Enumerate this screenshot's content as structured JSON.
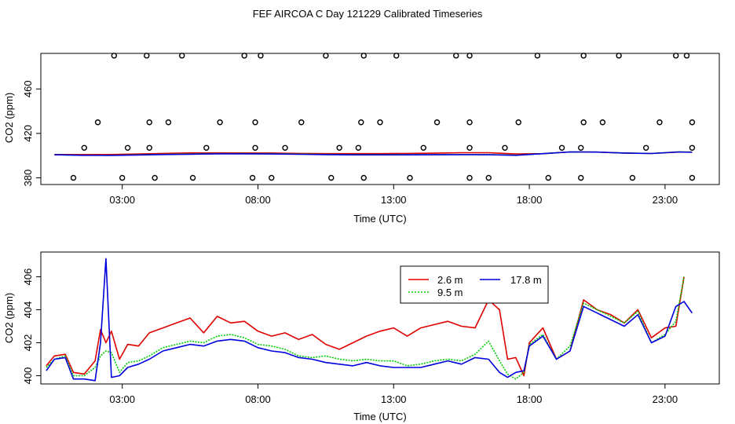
{
  "title": "FEF AIRCOA C  Day 121229  Calibrated Timeseries",
  "colors": {
    "red": "#e00000",
    "green": "#00cc00",
    "blue": "#0000dd",
    "axis": "#000000"
  },
  "chart_data": [
    {
      "type": "scatter+line",
      "xlabel": "Time (UTC)",
      "ylabel": "CO2 (ppm)",
      "xlim": [
        0.0,
        25.0
      ],
      "ylim": [
        374,
        492
      ],
      "x_ticks": [
        3,
        8,
        13,
        18,
        23
      ],
      "x_tick_labels": [
        "03:00",
        "08:00",
        "13:00",
        "18:00",
        "23:00"
      ],
      "y_ticks": [
        380,
        420,
        460
      ],
      "y_tick_labels": [
        "380",
        "420",
        "460"
      ],
      "scatter_points": {
        "x": [
          1.2,
          3.0,
          4.2,
          5.6,
          7.8,
          8.5,
          10.7,
          11.9,
          13.6,
          15.8,
          16.5,
          18.7,
          19.9,
          21.8,
          24.0,
          1.6,
          3.2,
          4.0,
          6.1,
          7.9,
          9.0,
          11.0,
          11.7,
          14.1,
          15.8,
          17.1,
          19.2,
          19.9,
          22.3,
          24.0,
          2.1,
          4.0,
          4.7,
          6.6,
          7.9,
          9.6,
          11.8,
          12.5,
          14.6,
          15.8,
          17.6,
          20.0,
          20.7,
          22.8,
          24.0,
          2.7,
          3.9,
          5.2,
          7.5,
          8.1,
          10.5,
          11.9,
          13.1,
          15.3,
          15.8,
          18.3,
          20.0,
          21.3,
          23.4,
          23.8
        ],
        "y": [
          380,
          380,
          380,
          380,
          380,
          380,
          380,
          380,
          380,
          380,
          380,
          380,
          380,
          380,
          380,
          407,
          407,
          407,
          407,
          407,
          407,
          407,
          407,
          407,
          407,
          407,
          407,
          407,
          407,
          407,
          430,
          430,
          430,
          430,
          430,
          430,
          430,
          430,
          430,
          430,
          430,
          430,
          430,
          430,
          430,
          490,
          490,
          490,
          490,
          490,
          490,
          490,
          490,
          490,
          490,
          490,
          490,
          490,
          490,
          490
        ]
      },
      "series": [
        {
          "name": "2.6 m",
          "color": "red",
          "x": [
            0.5,
            1.5,
            2.5,
            3.5,
            4.5,
            5.5,
            6.5,
            7.5,
            8.5,
            9.5,
            10.5,
            11.5,
            12.5,
            13.5,
            14.5,
            15.5,
            16.5,
            17.5,
            18.5,
            19.5,
            20.5,
            21.5,
            22.5,
            23.5,
            24.0
          ],
          "values": [
            401.0,
            401.0,
            401.0,
            401.4,
            402.0,
            402.4,
            402.5,
            402.4,
            402.3,
            402.0,
            401.8,
            401.8,
            401.8,
            402.0,
            402.2,
            402.6,
            402.6,
            401.5,
            401.8,
            403.3,
            403.2,
            402.3,
            401.9,
            403.2,
            403.2
          ]
        },
        {
          "name": "9.5 m",
          "color": "green",
          "x": [
            0.5,
            1.5,
            2.5,
            3.5,
            4.5,
            5.5,
            6.5,
            7.5,
            8.5,
            9.5,
            10.5,
            11.5,
            12.5,
            13.5,
            14.5,
            15.5,
            16.5,
            17.5,
            18.5,
            19.5,
            20.5,
            21.5,
            22.5,
            23.5,
            24.0
          ],
          "values": [
            400.8,
            400.4,
            400.3,
            400.8,
            401.2,
            401.6,
            401.9,
            401.9,
            401.8,
            401.5,
            401.1,
            401.0,
            401.0,
            401.0,
            401.0,
            401.0,
            401.0,
            400.5,
            401.8,
            403.3,
            403.2,
            402.3,
            401.9,
            403.5,
            403.2
          ]
        },
        {
          "name": "17.8 m",
          "color": "blue",
          "x": [
            0.5,
            1.5,
            2.5,
            3.5,
            4.5,
            5.5,
            6.5,
            7.5,
            8.5,
            9.5,
            10.5,
            11.5,
            12.5,
            13.5,
            14.5,
            15.5,
            16.5,
            17.5,
            18.5,
            19.5,
            20.5,
            21.5,
            22.5,
            23.5,
            24.0
          ],
          "values": [
            400.8,
            400.3,
            400.2,
            400.6,
            401.0,
            401.3,
            401.6,
            401.6,
            401.5,
            401.2,
            400.9,
            400.7,
            400.7,
            400.7,
            400.8,
            400.9,
            400.8,
            400.3,
            401.8,
            403.3,
            403.2,
            402.3,
            401.9,
            403.3,
            403.0
          ]
        }
      ]
    },
    {
      "type": "line",
      "xlabel": "Time (UTC)",
      "ylabel": "CO2 (ppm)",
      "xlim": [
        0.0,
        25.0
      ],
      "ylim": [
        399.5,
        407.5
      ],
      "x_ticks": [
        3,
        8,
        13,
        18,
        23
      ],
      "x_tick_labels": [
        "03:00",
        "08:00",
        "13:00",
        "18:00",
        "23:00"
      ],
      "y_ticks": [
        400,
        402,
        404,
        406
      ],
      "y_tick_labels": [
        "400",
        "402",
        "404",
        "406"
      ],
      "legend": {
        "position": "top-center",
        "entries": [
          "2.6 m",
          "9.5 m",
          "17.8 m"
        ]
      },
      "series": [
        {
          "name": "2.6 m",
          "color": "red",
          "x": [
            0.2,
            0.5,
            0.9,
            1.2,
            1.6,
            2.0,
            2.2,
            2.4,
            2.6,
            2.9,
            3.2,
            3.6,
            4.0,
            4.5,
            5.0,
            5.5,
            6.0,
            6.5,
            7.0,
            7.5,
            8.0,
            8.5,
            9.0,
            9.5,
            10.0,
            10.5,
            11.0,
            11.5,
            12.0,
            12.5,
            13.0,
            13.5,
            14.0,
            14.5,
            15.0,
            15.5,
            16.0,
            16.5,
            16.9,
            17.2,
            17.5,
            17.8,
            18.0,
            18.5,
            19.0,
            19.5,
            20.0,
            20.5,
            21.0,
            21.5,
            22.0,
            22.5,
            23.0,
            23.4,
            23.7
          ],
          "values": [
            400.6,
            401.2,
            401.3,
            400.2,
            400.1,
            400.9,
            402.8,
            402.0,
            402.7,
            401.0,
            401.9,
            401.8,
            402.6,
            402.9,
            403.2,
            403.5,
            402.6,
            403.6,
            403.2,
            403.3,
            402.7,
            402.4,
            402.6,
            402.2,
            402.5,
            401.9,
            401.6,
            402.0,
            402.4,
            402.7,
            402.9,
            402.4,
            402.9,
            403.1,
            403.3,
            403.0,
            402.9,
            404.6,
            404.0,
            401.0,
            401.1,
            400.0,
            402.0,
            402.9,
            401.0,
            401.5,
            404.6,
            404.0,
            403.7,
            403.2,
            404.0,
            402.3,
            402.9,
            403.0,
            406.0
          ]
        },
        {
          "name": "9.5 m",
          "color": "green",
          "x": [
            0.2,
            0.5,
            0.9,
            1.2,
            1.6,
            2.0,
            2.2,
            2.4,
            2.6,
            2.9,
            3.2,
            3.6,
            4.0,
            4.5,
            5.0,
            5.5,
            6.0,
            6.5,
            7.0,
            7.5,
            8.0,
            8.5,
            9.0,
            9.5,
            10.0,
            10.5,
            11.0,
            11.5,
            12.0,
            12.5,
            13.0,
            13.5,
            14.0,
            14.5,
            15.0,
            15.5,
            16.0,
            16.5,
            16.9,
            17.2,
            17.5,
            17.8,
            18.0,
            18.5,
            19.0,
            19.5,
            20.0,
            20.5,
            21.0,
            21.5,
            22.0,
            22.5,
            23.0,
            23.4,
            23.7
          ],
          "values": [
            400.5,
            401.0,
            401.2,
            400.0,
            400.0,
            400.5,
            401.2,
            401.5,
            401.4,
            400.2,
            400.8,
            400.9,
            401.2,
            401.7,
            401.9,
            402.1,
            402.0,
            402.4,
            402.5,
            402.3,
            401.9,
            401.8,
            401.6,
            401.2,
            401.1,
            401.2,
            401.0,
            400.9,
            401.0,
            400.9,
            400.9,
            400.6,
            400.7,
            400.9,
            401.0,
            400.9,
            401.3,
            402.1,
            400.9,
            400.1,
            399.8,
            400.2,
            401.9,
            402.5,
            401.0,
            401.8,
            404.4,
            404.0,
            403.6,
            403.2,
            403.9,
            402.0,
            402.5,
            403.3,
            406.0
          ]
        },
        {
          "name": "17.8 m",
          "color": "blue",
          "x": [
            0.2,
            0.5,
            0.9,
            1.2,
            1.6,
            2.0,
            2.2,
            2.4,
            2.6,
            2.9,
            3.2,
            3.6,
            4.0,
            4.5,
            5.0,
            5.5,
            6.0,
            6.5,
            7.0,
            7.5,
            8.0,
            8.5,
            9.0,
            9.5,
            10.0,
            10.5,
            11.0,
            11.5,
            12.0,
            12.5,
            13.0,
            13.5,
            14.0,
            14.5,
            15.0,
            15.5,
            16.0,
            16.5,
            16.9,
            17.2,
            17.5,
            17.8,
            18.0,
            18.5,
            19.0,
            19.5,
            20.0,
            20.5,
            21.0,
            21.5,
            22.0,
            22.5,
            23.0,
            23.4,
            23.7,
            24.0
          ],
          "values": [
            400.3,
            401.0,
            401.1,
            399.8,
            399.8,
            399.7,
            402.0,
            407.1,
            399.9,
            400.0,
            400.5,
            400.7,
            401.0,
            401.5,
            401.7,
            401.9,
            401.8,
            402.1,
            402.2,
            402.1,
            401.7,
            401.5,
            401.4,
            401.1,
            401.0,
            400.8,
            400.7,
            400.6,
            400.8,
            400.6,
            400.5,
            400.5,
            400.5,
            400.7,
            400.9,
            400.7,
            401.1,
            401.0,
            400.2,
            399.9,
            400.2,
            400.3,
            401.8,
            402.4,
            401.0,
            401.5,
            404.2,
            403.8,
            403.4,
            403.0,
            403.7,
            402.0,
            402.4,
            404.2,
            404.5,
            403.8
          ]
        }
      ]
    }
  ]
}
